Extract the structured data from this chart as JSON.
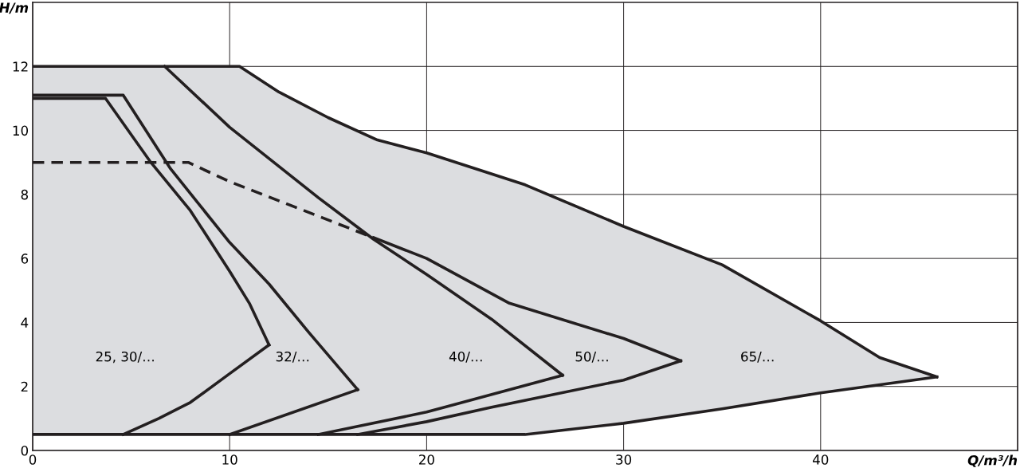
{
  "chart_data": {
    "type": "line",
    "xlabel": "Q/m³/h",
    "ylabel": "H/m",
    "xlim": [
      0,
      50
    ],
    "ylim": [
      0,
      14
    ],
    "xticks": [
      0,
      10,
      20,
      30,
      40
    ],
    "yticks": [
      0,
      2,
      4,
      6,
      8,
      10,
      12
    ],
    "grid": true,
    "legend": false,
    "marker": "none",
    "series": [
      {
        "type": "area",
        "color": "#dcdde0",
        "x": [
          0,
          10.5,
          12.5,
          15,
          17.5,
          20,
          25,
          30,
          35,
          40,
          43,
          45.9
        ],
        "values": [
          12,
          12,
          11.2,
          10.4,
          9.7,
          9.3,
          8.3,
          7.0,
          5.8,
          4.05,
          2.9,
          2.3
        ]
      },
      {
        "color": "#231f20",
        "x": [
          0,
          25,
          30,
          35,
          40,
          45.9
        ],
        "values": [
          0.5,
          0.5,
          0.85,
          1.3,
          1.8,
          2.3
        ]
      },
      {
        "color": "#231f20",
        "x": [
          0,
          3.7,
          6,
          8,
          10,
          11,
          12
        ],
        "values": [
          11,
          11,
          9.0,
          7.5,
          5.6,
          4.6,
          3.3
        ]
      },
      {
        "color": "#231f20",
        "x": [
          4.6,
          6.4,
          8,
          10,
          12
        ],
        "values": [
          0.5,
          1.0,
          1.5,
          2.4,
          3.3
        ]
      },
      {
        "color": "#231f20",
        "x": [
          0,
          4.6,
          7,
          10,
          12,
          14,
          16.5
        ],
        "values": [
          11.1,
          11.1,
          8.8,
          6.5,
          5.2,
          3.7,
          1.9
        ]
      },
      {
        "color": "#231f20",
        "x": [
          10,
          16.5
        ],
        "values": [
          0.5,
          1.9
        ]
      },
      {
        "color": "#231f20",
        "x": [
          6.7,
          10,
          14.5,
          17.3,
          20,
          23.3,
          26.9
        ],
        "values": [
          12,
          10.1,
          7.9,
          6.6,
          5.5,
          4.1,
          2.35
        ]
      },
      {
        "color": "#231f20",
        "x": [
          14.5,
          20,
          26.9
        ],
        "values": [
          0.5,
          1.2,
          2.35
        ]
      },
      {
        "color": "#231f20",
        "line_style": "dashed",
        "x": [
          0,
          7.9,
          10,
          17.3
        ],
        "values": [
          9,
          9,
          8.4,
          6.65
        ]
      },
      {
        "color": "#231f20",
        "x": [
          17.3,
          20,
          24.2,
          30,
          32.9
        ],
        "values": [
          6.65,
          6.0,
          4.6,
          3.5,
          2.8
        ]
      },
      {
        "color": "#231f20",
        "x": [
          16.5,
          20,
          23.3,
          30,
          32.9
        ],
        "values": [
          0.5,
          0.9,
          1.35,
          2.2,
          2.8
        ]
      }
    ],
    "annotations": [
      "25, 30/…",
      "32/…",
      "40/…",
      "50/…",
      "65/…"
    ]
  }
}
